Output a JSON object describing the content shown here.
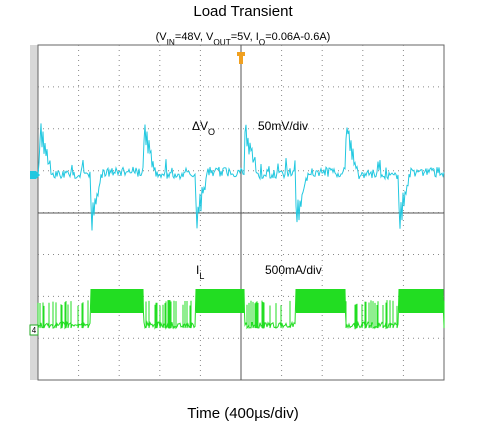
{
  "header": {
    "title": "Load Transient",
    "subtitle": [
      {
        "text": "(V"
      },
      {
        "text": "IN",
        "sub": true
      },
      {
        "text": "=48V, V"
      },
      {
        "text": "OUT",
        "sub": true
      },
      {
        "text": "=5V, I"
      },
      {
        "text": "O",
        "sub": true
      },
      {
        "text": "=0.06A-0.6A)"
      }
    ]
  },
  "scope": {
    "voltage_label": [
      {
        "text": "ΔV"
      },
      {
        "text": "O",
        "sub": true
      }
    ],
    "voltage_scale": "50mV/div",
    "current_label": [
      {
        "text": "I"
      },
      {
        "text": "L",
        "sub": true
      }
    ],
    "current_scale": "500mA/div",
    "channel_marker": "4"
  },
  "x_axis": "Time (400µs/div)"
}
